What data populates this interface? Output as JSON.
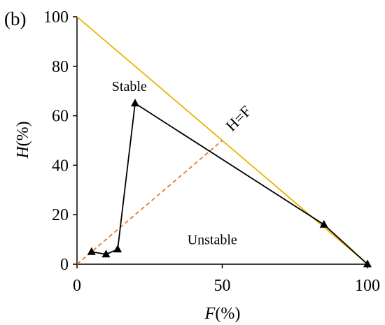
{
  "chart_data": {
    "type": "line",
    "panel_label": "(b)",
    "xlabel": {
      "var": "F",
      "unit": "(%)"
    },
    "ylabel": {
      "var": "H",
      "unit": "(%)"
    },
    "xlim": [
      0,
      100
    ],
    "ylim": [
      0,
      100
    ],
    "xticks": [
      0,
      50,
      100
    ],
    "yticks": [
      0,
      20,
      40,
      60,
      80,
      100
    ],
    "grid": false,
    "boundary_line": {
      "x": [
        0,
        100
      ],
      "y": [
        100,
        0
      ],
      "color": "#e8b400"
    },
    "reference_line": {
      "label": "H=F",
      "x": [
        0,
        50
      ],
      "y": [
        0,
        50
      ],
      "color": "#e07b39",
      "style": "dashed"
    },
    "series": [
      {
        "color": "#000000",
        "marker": "triangle",
        "x": [
          5,
          10,
          14,
          20,
          85,
          100
        ],
        "y": [
          5,
          4,
          6,
          65,
          16,
          0
        ]
      }
    ],
    "annotations": [
      {
        "text": "Stable",
        "x": 12,
        "y": 70
      },
      {
        "text": "Unstable",
        "x": 38,
        "y": 8
      }
    ]
  }
}
